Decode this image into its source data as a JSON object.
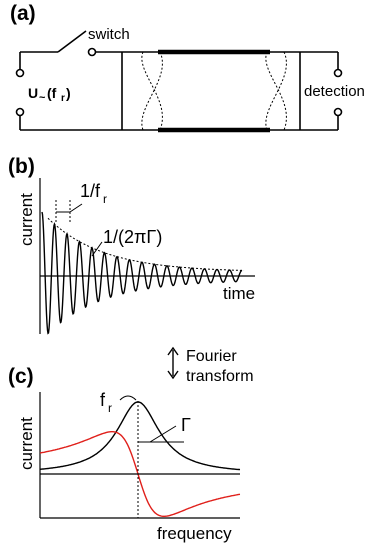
{
  "panel_a": {
    "label": "(a)",
    "switch_label": "switch",
    "source_label_main": "U",
    "source_label_sub": "~",
    "source_label_paren_open": "(f",
    "source_label_paren_sub": "r",
    "source_label_paren_close": ")",
    "detection_label": "detection"
  },
  "panel_b": {
    "label": "(b)",
    "ylabel": "current",
    "xlabel": "time",
    "period_label_main": "1/f",
    "period_label_sub": "r",
    "decay_label": "1/(2πΓ)"
  },
  "fourier": {
    "line1": "Fourier",
    "line2": "transform"
  },
  "panel_c": {
    "label": "(c)",
    "ylabel": "current",
    "xlabel": "frequency",
    "peak_label_main": "f",
    "peak_label_sub": "r",
    "width_label": "Γ",
    "colors": {
      "absorptive": "#000000",
      "dispersive": "#e0201b"
    }
  }
}
